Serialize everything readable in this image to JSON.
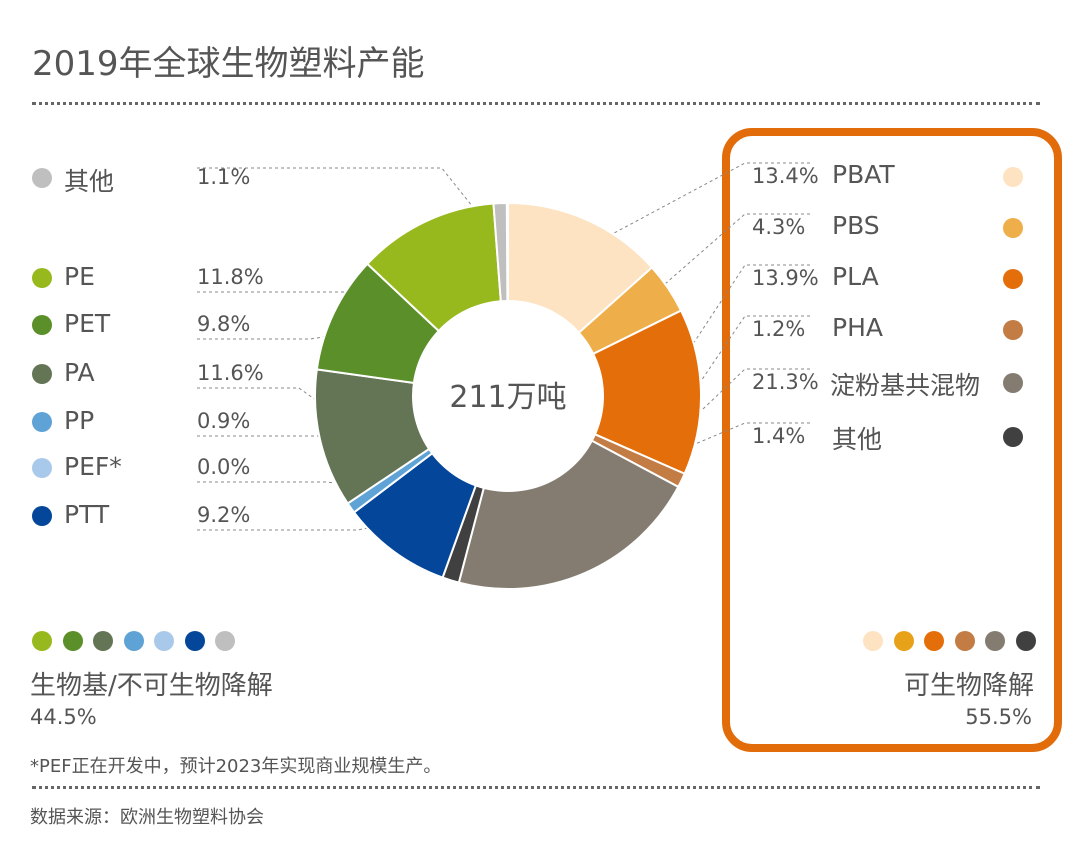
{
  "title": "2019年全球生物塑料产能",
  "chart_data": {
    "type": "pie",
    "donut": true,
    "title": "2019年全球生物塑料产能",
    "center_label": "211万吨",
    "unit": "%",
    "slices": [
      {
        "name": "PBAT",
        "value": 13.4,
        "label": "13.4%",
        "color": "#fde3c2",
        "group": "biodegradable"
      },
      {
        "name": "PBS",
        "value": 4.3,
        "label": "4.3%",
        "color": "#eeae49",
        "group": "biodegradable"
      },
      {
        "name": "PLA",
        "value": 13.9,
        "label": "13.9%",
        "color": "#e46f0a",
        "group": "biodegradable"
      },
      {
        "name": "PHA",
        "value": 1.2,
        "label": "1.2%",
        "color": "#c27c44",
        "group": "biodegradable"
      },
      {
        "name": "淀粉基共混物",
        "value": 21.3,
        "label": "21.3%",
        "color": "#847c70",
        "group": "biodegradable"
      },
      {
        "name": "其他",
        "value": 1.4,
        "label": "1.4%",
        "color": "#404040",
        "group": "biodegradable"
      },
      {
        "name": "PTT",
        "value": 9.2,
        "label": "9.2%",
        "color": "#03469a",
        "group": "biobased"
      },
      {
        "name": "PEF*",
        "value": 0.0,
        "label": "0.0%",
        "color": "#a9c9ea",
        "group": "biobased"
      },
      {
        "name": "PP",
        "value": 0.9,
        "label": "0.9%",
        "color": "#5fa3d6",
        "group": "biobased"
      },
      {
        "name": "PA",
        "value": 11.6,
        "label": "11.6%",
        "color": "#647556",
        "group": "biobased"
      },
      {
        "name": "PET",
        "value": 9.8,
        "label": "9.8%",
        "color": "#5a8f29",
        "group": "biobased"
      },
      {
        "name": "PE",
        "value": 11.8,
        "label": "11.8%",
        "color": "#97b91e",
        "group": "biobased"
      },
      {
        "name": "其他",
        "value": 1.1,
        "label": "1.1%",
        "color": "#bfbfbf",
        "group": "biobased"
      }
    ],
    "groups": {
      "biobased": {
        "label": "生物基/不可生物降解",
        "total": "44.5%",
        "legend_order": [
          "PE",
          "PET",
          "PA",
          "PP",
          "PEF*",
          "PTT",
          "其他"
        ]
      },
      "biodegradable": {
        "label": "可生物降解",
        "total": "55.5%",
        "highlight_color": "#e36c0a"
      }
    }
  },
  "left_legend": [
    {
      "name": "其他",
      "pct": "1.1%",
      "color": "#bfbfbf",
      "slice": 12
    },
    {
      "name": "PE",
      "pct": "11.8%",
      "color": "#97b91e",
      "slice": 11
    },
    {
      "name": "PET",
      "pct": "9.8%",
      "color": "#5a8f29",
      "slice": 10
    },
    {
      "name": "PA",
      "pct": "11.6%",
      "color": "#647556",
      "slice": 9
    },
    {
      "name": "PP",
      "pct": "0.9%",
      "color": "#5fa3d6",
      "slice": 8
    },
    {
      "name": "PEF*",
      "pct": "0.0%",
      "color": "#a9c9ea",
      "slice": 7
    },
    {
      "name": "PTT",
      "pct": "9.2%",
      "color": "#03469a",
      "slice": 6
    }
  ],
  "right_legend": [
    {
      "name": "PBAT",
      "pct": "13.4%",
      "color": "#fde3c2",
      "slice": 0
    },
    {
      "name": "PBS",
      "pct": "4.3%",
      "color": "#eeae49",
      "slice": 1
    },
    {
      "name": "PLA",
      "pct": "13.9%",
      "color": "#e46f0a",
      "slice": 2
    },
    {
      "name": "PHA",
      "pct": "1.2%",
      "color": "#c27c44",
      "slice": 3
    },
    {
      "name": "淀粉基共混物",
      "pct": "21.3%",
      "color": "#847c70",
      "slice": 4
    },
    {
      "name": "其他",
      "pct": "1.4%",
      "color": "#404040",
      "slice": 5
    }
  ],
  "left_dots": [
    "#97b91e",
    "#5a8f29",
    "#647556",
    "#5fa3d6",
    "#a9c9ea",
    "#03469a",
    "#bfbfbf"
  ],
  "right_dots": [
    "#fde3c2",
    "#e8a21a",
    "#e46f0a",
    "#c27c44",
    "#847c70",
    "#404040"
  ],
  "footnote": "*PEF正在开发中，预计2023年实现商业规模生产。",
  "source": "数据来源：欧洲生物塑料协会"
}
